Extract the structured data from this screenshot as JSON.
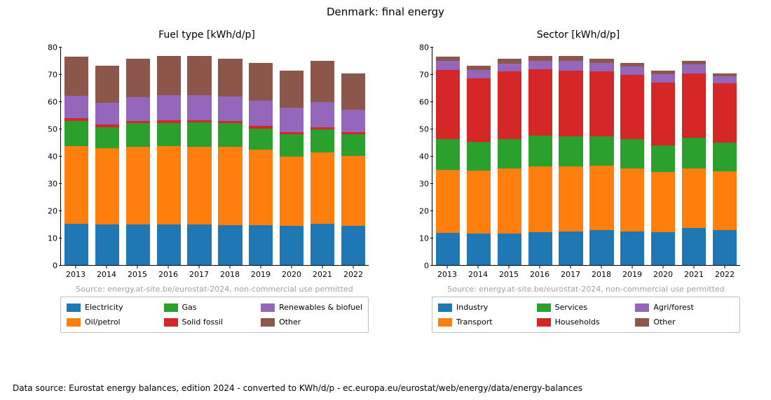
{
  "suptitle": "Denmark: final energy",
  "footer": "Data source: Eurostat energy balances, edition 2024 - converted to KWh/d/p - ec.europa.eu/eurostat/web/energy/data/energy-balances",
  "source_note": "Source: energy.at-site.be/eurostat-2024, non-commercial use permitted",
  "source_note_color": "#a0a0a0",
  "background_color": "#ffffff",
  "axis_color": "#000000",
  "ylim": [
    0,
    80
  ],
  "ytick_step": 10,
  "yticks": [
    0,
    10,
    20,
    30,
    40,
    50,
    60,
    70,
    80
  ],
  "categories": [
    "2013",
    "2014",
    "2015",
    "2016",
    "2017",
    "2018",
    "2019",
    "2020",
    "2021",
    "2022"
  ],
  "bar_width": 0.78,
  "fontsize_title": 14,
  "fontsize_suptitle": 15,
  "fontsize_tick": 11,
  "fontsize_legend": 11,
  "fontsize_footer": 12,
  "panels": [
    {
      "title": "Fuel type [kWh/d/p]",
      "series": [
        {
          "label": "Electricity",
          "color": "#1f77b4"
        },
        {
          "label": "Oil/petrol",
          "color": "#ff7f0e"
        },
        {
          "label": "Gas",
          "color": "#2ca02c"
        },
        {
          "label": "Solid fossil",
          "color": "#d62728"
        },
        {
          "label": "Renewables & biofuel",
          "color": "#9467bd"
        },
        {
          "label": "Other",
          "color": "#8c564b"
        }
      ],
      "legend_order": [
        0,
        2,
        4,
        1,
        3,
        5
      ],
      "data": [
        [
          15.2,
          28.6,
          9.2,
          1.0,
          8.2,
          14.4
        ],
        [
          15.0,
          28.0,
          7.6,
          1.0,
          8.0,
          13.6
        ],
        [
          15.0,
          28.6,
          8.6,
          0.9,
          8.7,
          14.0
        ],
        [
          15.0,
          28.8,
          8.5,
          0.9,
          9.2,
          14.4
        ],
        [
          14.8,
          28.8,
          8.8,
          0.9,
          9.1,
          14.4
        ],
        [
          14.6,
          28.8,
          8.8,
          0.9,
          8.9,
          14.0
        ],
        [
          14.6,
          27.8,
          7.8,
          1.0,
          9.2,
          14.0
        ],
        [
          14.4,
          25.4,
          8.2,
          1.0,
          9.0,
          13.4
        ],
        [
          15.2,
          26.2,
          8.4,
          1.0,
          9.2,
          15.0
        ],
        [
          14.4,
          25.8,
          7.8,
          1.0,
          8.2,
          13.4
        ]
      ]
    },
    {
      "title": "Sector [kWh/d/p]",
      "series": [
        {
          "label": "Industry",
          "color": "#1f77b4"
        },
        {
          "label": "Transport",
          "color": "#ff7f0e"
        },
        {
          "label": "Services",
          "color": "#2ca02c"
        },
        {
          "label": "Households",
          "color": "#d62728"
        },
        {
          "label": "Agri/forest",
          "color": "#9467bd"
        },
        {
          "label": "Other",
          "color": "#8c564b"
        }
      ],
      "legend_order": [
        0,
        2,
        4,
        1,
        3,
        5
      ],
      "data": [
        [
          11.8,
          23.2,
          11.4,
          25.4,
          3.2,
          1.6
        ],
        [
          11.6,
          23.2,
          10.6,
          23.2,
          3.1,
          1.5
        ],
        [
          11.6,
          24.0,
          10.8,
          24.8,
          3.0,
          1.6
        ],
        [
          12.0,
          24.2,
          11.4,
          24.4,
          3.2,
          1.6
        ],
        [
          12.4,
          24.0,
          11.0,
          24.2,
          3.4,
          1.8
        ],
        [
          12.8,
          23.8,
          10.8,
          23.8,
          3.2,
          1.6
        ],
        [
          12.4,
          23.2,
          10.8,
          23.6,
          3.0,
          1.4
        ],
        [
          12.2,
          22.0,
          9.8,
          23.2,
          3.0,
          1.2
        ],
        [
          13.6,
          21.8,
          11.4,
          23.6,
          3.4,
          1.4
        ],
        [
          12.8,
          21.8,
          10.4,
          21.8,
          2.6,
          1.2
        ]
      ]
    }
  ]
}
